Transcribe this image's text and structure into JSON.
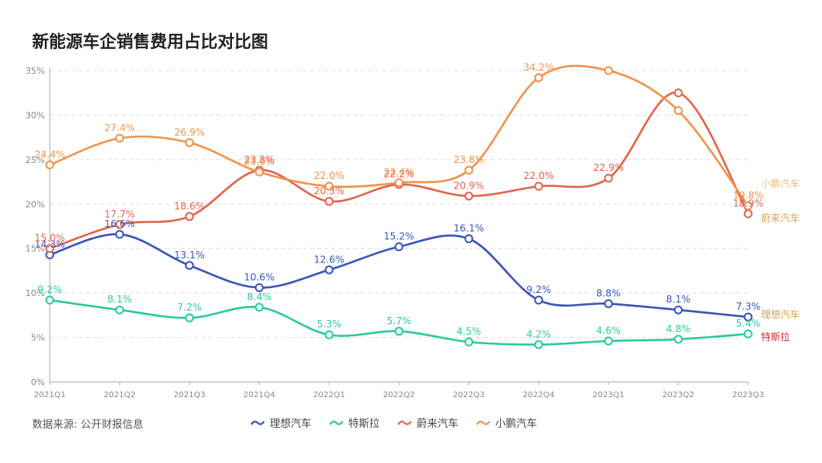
{
  "title": "新能源车企销售费用占比对比图",
  "source": "数据来源: 公开财报信息",
  "chart_data": {
    "type": "line",
    "title": "新能源车企销售费用占比对比图",
    "categories": [
      "2021Q1",
      "2021Q2",
      "2021Q3",
      "2021Q4",
      "2022Q1",
      "2022Q2",
      "2022Q3",
      "2022Q4",
      "2023Q1",
      "2023Q2",
      "2023Q3"
    ],
    "yticks": [
      "0%",
      "5%",
      "10%",
      "15%",
      "20%",
      "25%",
      "30%",
      "35%"
    ],
    "ylim": [
      0,
      35
    ],
    "grid": true,
    "legend_position": "bottom",
    "series": [
      {
        "name": "理想汽车",
        "color": "#3b55b8",
        "values": [
          14.3,
          16.6,
          13.1,
          10.6,
          12.6,
          15.2,
          16.1,
          9.2,
          8.8,
          8.1,
          7.3
        ],
        "labels": [
          "14.3%",
          "16.6%",
          "13.1%",
          "10.6%",
          "12.6%",
          "15.2%",
          "16.1%",
          "9.2%",
          "8.8%",
          "8.1%",
          "7.3%"
        ],
        "end_label": "理想汽车"
      },
      {
        "name": "特斯拉",
        "color": "#2ec9a0",
        "values": [
          9.2,
          8.1,
          7.2,
          8.4,
          5.3,
          5.7,
          4.5,
          4.2,
          4.6,
          4.8,
          5.4
        ],
        "labels": [
          "9.2%",
          "8.1%",
          "7.2%",
          "8.4%",
          "5.3%",
          "5.7%",
          "4.5%",
          "4.2%",
          "4.6%",
          "4.8%",
          "5.4%"
        ],
        "end_label": "特斯拉"
      },
      {
        "name": "蔚来汽车",
        "color": "#e06650",
        "values": [
          15.0,
          17.7,
          18.6,
          23.8,
          20.3,
          22.2,
          20.9,
          22.0,
          22.9,
          32.5,
          18.9
        ],
        "labels": [
          "15.0%",
          "17.7%",
          "18.6%",
          "23.8%",
          "20.3%",
          "22.2%",
          "20.9%",
          "22.0%",
          "22.9%",
          "",
          "18.9%"
        ],
        "end_label": "蔚来汽车"
      },
      {
        "name": "小鹏汽车",
        "color": "#ee9450",
        "values": [
          24.4,
          27.4,
          26.9,
          23.6,
          22.0,
          22.4,
          23.8,
          34.2,
          35.0,
          30.5,
          19.8
        ],
        "labels": [
          "24.4%",
          "27.4%",
          "26.9%",
          "23.6%",
          "22.0%",
          "22.4%",
          "23.8%",
          "34.2%",
          "",
          "",
          "19.8%"
        ],
        "end_label": "小鹏汽车"
      }
    ]
  }
}
